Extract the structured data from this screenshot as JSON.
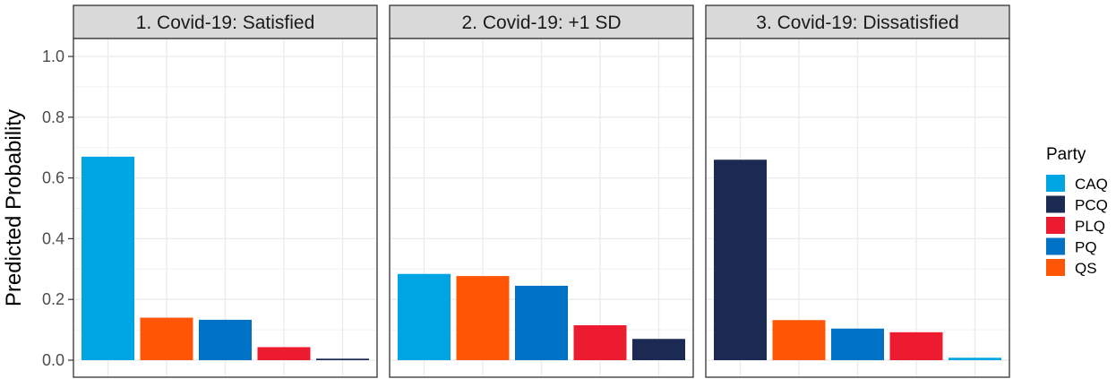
{
  "chart_data": {
    "type": "bar",
    "ylabel": "Predicted Probability",
    "xlabel": "",
    "ylim": [
      0,
      1.0
    ],
    "yticks": [
      0.0,
      0.2,
      0.4,
      0.6,
      0.8,
      1.0
    ],
    "ytick_labels": [
      "0.0",
      "0.2",
      "0.4",
      "0.6",
      "0.8",
      "1.0"
    ],
    "grid": true,
    "legend": {
      "title": "Party",
      "position": "right",
      "entries": [
        {
          "name": "CAQ",
          "color": "#00A5E3"
        },
        {
          "name": "PCQ",
          "color": "#1B2A52"
        },
        {
          "name": "PLQ",
          "color": "#ED1B2F"
        },
        {
          "name": "PQ",
          "color": "#0072C6"
        },
        {
          "name": "QS",
          "color": "#FF5605"
        }
      ]
    },
    "panels": [
      {
        "title": "1. Covid-19: Satisfied",
        "bars": [
          {
            "party": "CAQ",
            "value": 0.67
          },
          {
            "party": "QS",
            "value": 0.14
          },
          {
            "party": "PQ",
            "value": 0.133
          },
          {
            "party": "PLQ",
            "value": 0.043
          },
          {
            "party": "PCQ",
            "value": 0.005
          }
        ]
      },
      {
        "title": "2. Covid-19: +1 SD",
        "bars": [
          {
            "party": "CAQ",
            "value": 0.284
          },
          {
            "party": "QS",
            "value": 0.277
          },
          {
            "party": "PQ",
            "value": 0.245
          },
          {
            "party": "PLQ",
            "value": 0.115
          },
          {
            "party": "PCQ",
            "value": 0.07
          }
        ]
      },
      {
        "title": "3. Covid-19: Dissatisfied",
        "bars": [
          {
            "party": "PCQ",
            "value": 0.66
          },
          {
            "party": "QS",
            "value": 0.132
          },
          {
            "party": "PQ",
            "value": 0.104
          },
          {
            "party": "PLQ",
            "value": 0.092
          },
          {
            "party": "CAQ",
            "value": 0.008
          }
        ]
      }
    ]
  }
}
